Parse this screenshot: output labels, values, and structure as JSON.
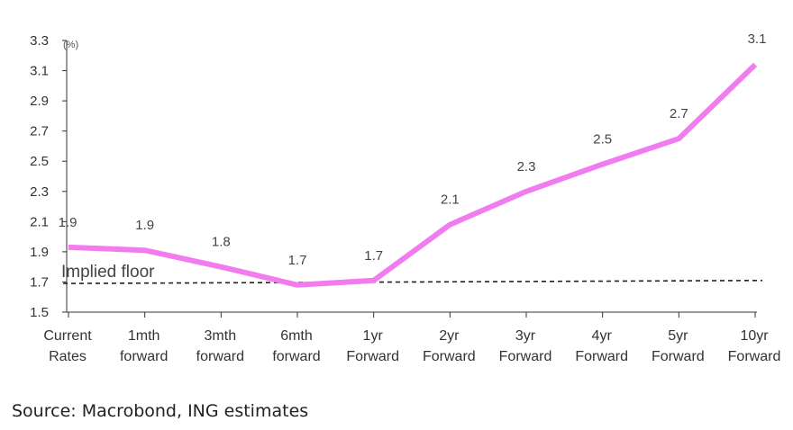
{
  "chart_data": {
    "type": "line",
    "title": "",
    "unit_label": "(%)",
    "categories": [
      [
        "Current",
        "Rates"
      ],
      [
        "1mth",
        "forward"
      ],
      [
        "3mth",
        "forward"
      ],
      [
        "6mth",
        "forward"
      ],
      [
        "1yr",
        "Forward"
      ],
      [
        "2yr",
        "Forward"
      ],
      [
        "3yr",
        "Forward"
      ],
      [
        "4yr",
        "Forward"
      ],
      [
        "5yr",
        "Forward"
      ],
      [
        "10yr",
        "Forward"
      ]
    ],
    "series": [
      {
        "values": [
          1.93,
          1.91,
          1.8,
          1.68,
          1.71,
          2.08,
          2.3,
          2.48,
          2.65,
          3.14
        ],
        "labels": [
          "1.9",
          "1.9",
          "1.8",
          "1.7",
          "1.7",
          "2.1",
          "2.3",
          "2.5",
          "2.7",
          "3.1"
        ],
        "color": "#f07cf0"
      }
    ],
    "reference_line": {
      "label": "Implied floor",
      "start": 1.69,
      "end": 1.71,
      "style": "dashed",
      "color": "#222222"
    },
    "yticks": [
      "1.5",
      "1.7",
      "1.9",
      "2.1",
      "2.3",
      "2.5",
      "2.7",
      "2.9",
      "3.1",
      "3.3"
    ],
    "ylim": [
      1.5,
      3.3
    ],
    "grid": false,
    "legend": "none"
  },
  "source": "Source: Macrobond, ING estimates"
}
